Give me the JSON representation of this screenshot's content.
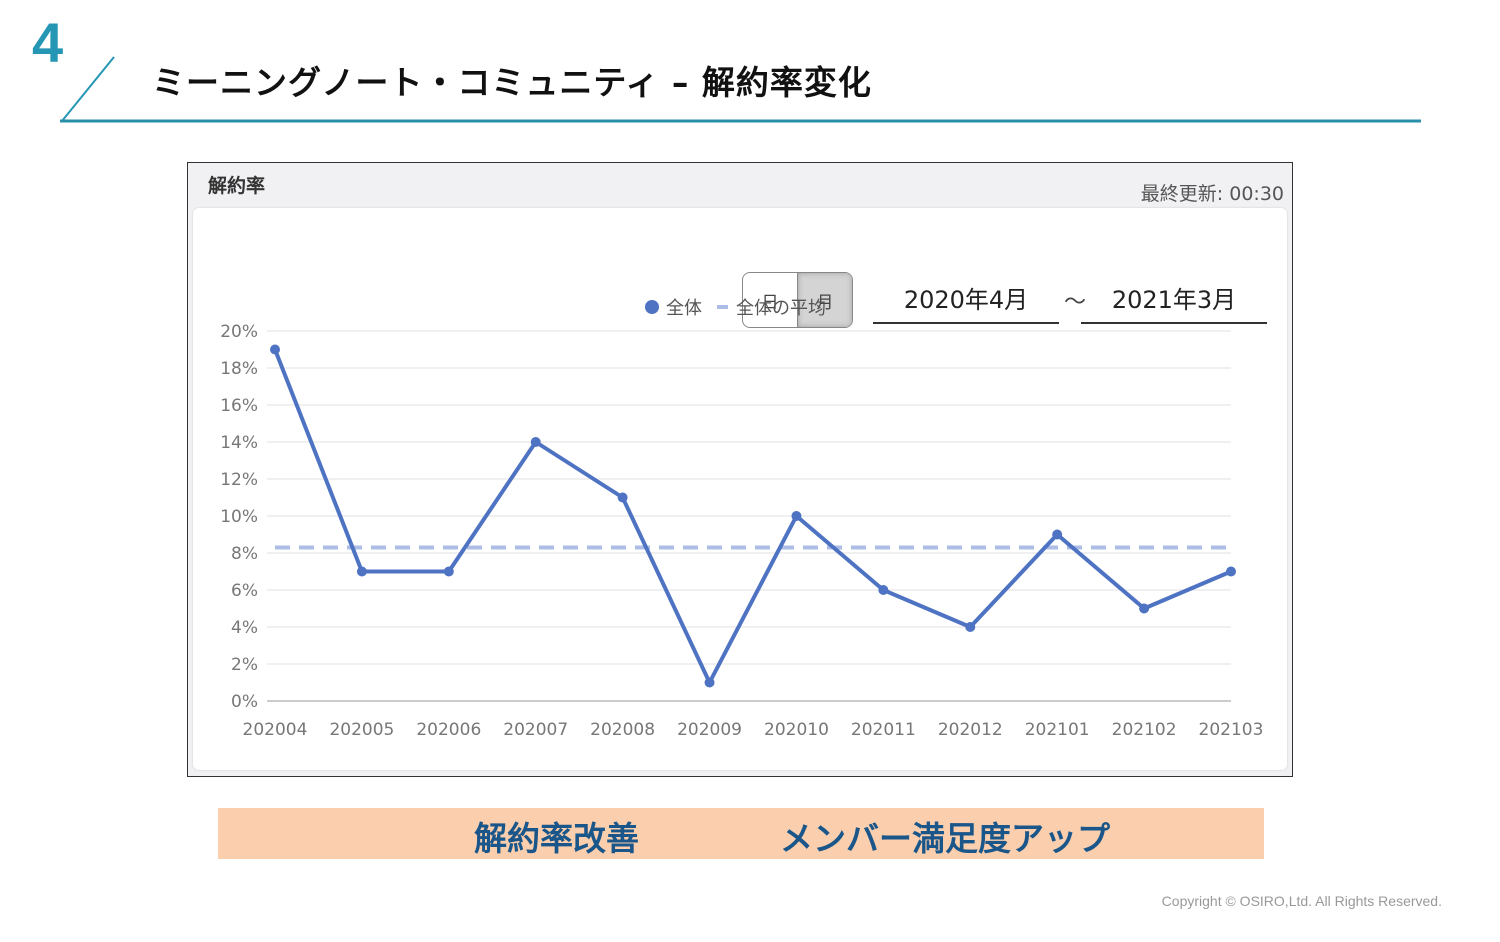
{
  "slide": {
    "number": "4",
    "title": "ミーニングノート・コミュニティ – 解約率変化",
    "accent_color": "#2596b4"
  },
  "panel": {
    "title": "解約率",
    "last_updated": "最終更新: 00:30",
    "toggle": {
      "day": "日",
      "month": "月",
      "selected": "月"
    },
    "date_from": "2020年4月",
    "separator": "〜",
    "date_to": "2021年3月"
  },
  "chart_data": {
    "type": "line",
    "categories": [
      "202004",
      "202005",
      "202006",
      "202007",
      "202008",
      "202009",
      "202010",
      "202011",
      "202012",
      "202101",
      "202102",
      "202103"
    ],
    "series": [
      {
        "name": "全体",
        "values": [
          19,
          7,
          7,
          14,
          11,
          1,
          10,
          6,
          4,
          9,
          5,
          7
        ],
        "color": "#4f73c3",
        "style": "solid-with-markers"
      },
      {
        "name": "全体の平均",
        "values": [
          8.3,
          8.3,
          8.3,
          8.3,
          8.3,
          8.3,
          8.3,
          8.3,
          8.3,
          8.3,
          8.3,
          8.3
        ],
        "color": "#aebde6",
        "style": "dashed"
      }
    ],
    "y_ticks": [
      "0%",
      "2%",
      "4%",
      "6%",
      "8%",
      "10%",
      "12%",
      "14%",
      "16%",
      "18%",
      "20%"
    ],
    "ylim": [
      0,
      20
    ],
    "y_unit": "%",
    "grid": true,
    "legend_position": "top-center"
  },
  "banner": {
    "left_text": "解約率改善",
    "right_text": "メンバー満足度アップ",
    "background": "#fbcfae",
    "text_color": "#1a5689"
  },
  "footer": {
    "copyright": "Copyright © OSIRO,Ltd. All Rights Reserved."
  }
}
